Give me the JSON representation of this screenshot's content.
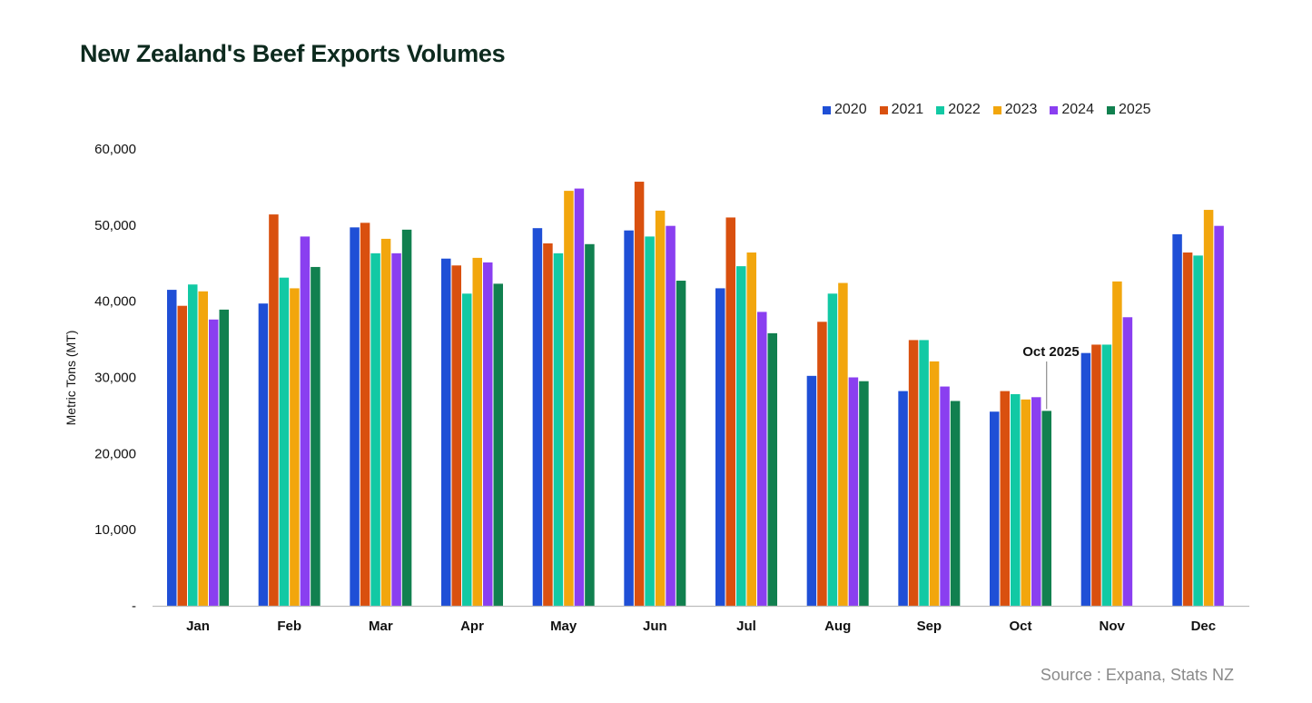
{
  "header": {
    "title": "New Zealand's Beef Exports Volumes"
  },
  "source": "Source : Expana, Stats NZ",
  "chart_data": {
    "type": "bar",
    "title": "New Zealand's Beef Exports Volumes",
    "xlabel": "",
    "ylabel": "Metric Tons (MT)",
    "ylim": [
      0,
      60000
    ],
    "yticks": [
      0,
      10000,
      20000,
      30000,
      40000,
      50000,
      60000
    ],
    "ytick_labels": [
      "-",
      "10,000",
      "20,000",
      "30,000",
      "40,000",
      "50,000",
      "60,000"
    ],
    "legend_position": "top-right",
    "categories": [
      "Jan",
      "Feb",
      "Mar",
      "Apr",
      "May",
      "Jun",
      "Jul",
      "Aug",
      "Sep",
      "Oct",
      "Nov",
      "Dec"
    ],
    "series": [
      {
        "name": "2020",
        "color": "#1f4fd6",
        "values": [
          41500,
          39700,
          49700,
          45600,
          49600,
          49300,
          41700,
          30200,
          28200,
          25500,
          33200,
          48800
        ]
      },
      {
        "name": "2021",
        "color": "#d9500f",
        "values": [
          39400,
          51400,
          50300,
          44700,
          47600,
          55700,
          51000,
          37300,
          34900,
          28200,
          34300,
          46400
        ]
      },
      {
        "name": "2022",
        "color": "#12c9a4",
        "values": [
          42200,
          43100,
          46300,
          41000,
          46300,
          48500,
          44600,
          41000,
          34900,
          27800,
          34300,
          46000
        ]
      },
      {
        "name": "2023",
        "color": "#f2a60d",
        "values": [
          41300,
          41700,
          48200,
          45700,
          54500,
          51900,
          46400,
          42400,
          32100,
          27100,
          42600,
          52000
        ]
      },
      {
        "name": "2024",
        "color": "#8a3ff0",
        "values": [
          37600,
          48500,
          46300,
          45100,
          54800,
          49900,
          38600,
          30000,
          28800,
          27400,
          37900,
          49900
        ]
      },
      {
        "name": "2025",
        "color": "#11804f",
        "values": [
          38900,
          44500,
          49400,
          42300,
          47500,
          42700,
          35800,
          29500,
          26900,
          25600,
          null,
          null
        ]
      }
    ],
    "annotations": [
      {
        "text": "Oct 2025",
        "category": "Oct",
        "series": "2025"
      }
    ]
  }
}
